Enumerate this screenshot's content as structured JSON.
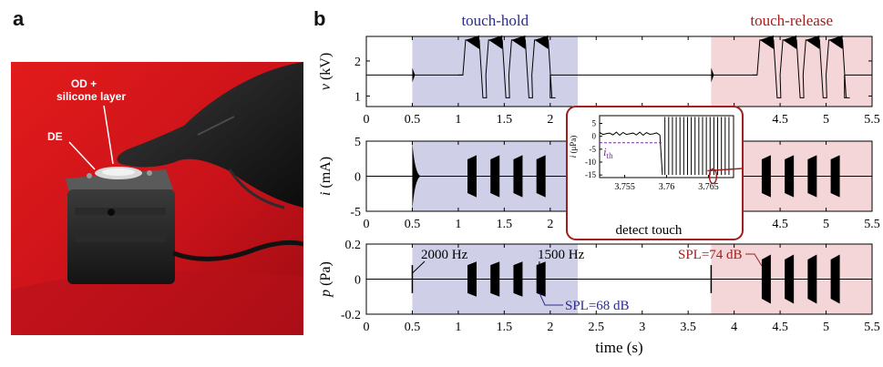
{
  "panels": {
    "a": "a",
    "b": "b"
  },
  "photo": {
    "label_od": "OD +",
    "label_silicone": "silicone layer",
    "label_de": "DE"
  },
  "regions": {
    "hold_label": "touch-hold",
    "release_label": "touch-release"
  },
  "colors": {
    "hold": "#bfc0e0",
    "release": "#f0c8cc",
    "hold_text": "#2b2b8c",
    "release_text": "#a01e1e",
    "inset_border": "#a01e1e",
    "signal": "#000000"
  },
  "chart_data": [
    {
      "type": "line",
      "ylabel_var": "v",
      "ylabel_unit": " (kV)",
      "xlim": [
        0,
        5.5
      ],
      "ylim": [
        0.7,
        2.7
      ],
      "xticks": [
        0,
        0.5,
        1,
        1.5,
        2,
        2.5,
        3,
        3.5,
        4,
        4.5,
        5,
        5.5
      ],
      "xtick_labels": [
        "0",
        "0.5",
        "1",
        "1.5",
        "2",
        "2.5",
        "3",
        "3.5",
        "4",
        "4.5",
        "5",
        "5.5"
      ],
      "yticks": [
        1,
        2
      ],
      "ytick_labels": [
        "1",
        "2"
      ],
      "baseline": 1.6,
      "pulse_starts_hold": [
        1.05,
        1.3,
        1.55,
        1.8
      ],
      "pulse_starts_release": [
        4.25,
        4.5,
        4.75,
        5.0
      ],
      "pulse_high": 2.6,
      "pulse_low": 0.95
    },
    {
      "type": "line",
      "ylabel_var": "i",
      "ylabel_unit": " (mA)",
      "xlim": [
        0,
        5.5
      ],
      "ylim": [
        -5,
        5
      ],
      "xticks": [
        0,
        0.5,
        1,
        1.5,
        2,
        2.5,
        3,
        3.5,
        4,
        4.5,
        5,
        5.5
      ],
      "xtick_labels": [
        "0",
        "0.5",
        "1",
        "1.5",
        "2",
        "2.5",
        "3",
        "3.5",
        "4",
        "4.5",
        "5",
        "5.5"
      ],
      "yticks": [
        -5,
        0,
        5
      ],
      "ytick_labels": [
        "-5",
        "0",
        "5"
      ],
      "bursts_hold": [
        1.1,
        1.35,
        1.6,
        1.85
      ],
      "bursts_release": [
        4.3,
        4.55,
        4.8,
        5.05
      ],
      "burst_amplitude": 3.0,
      "touch_spikes": [
        0.5,
        3.75
      ],
      "spike_amplitude": 4.8
    },
    {
      "type": "line",
      "ylabel_var": "p",
      "ylabel_unit": " (Pa)",
      "xlim": [
        0,
        5.5
      ],
      "ylim": [
        -0.2,
        0.2
      ],
      "xticks": [
        0,
        0.5,
        1,
        1.5,
        2,
        2.5,
        3,
        3.5,
        4,
        4.5,
        5,
        5.5
      ],
      "xtick_labels": [
        "0",
        "0.5",
        "1",
        "1.5",
        "2",
        "2.5",
        "3",
        "3.5",
        "4",
        "4.5",
        "5",
        "5.5"
      ],
      "yticks": [
        -0.2,
        0,
        0.2
      ],
      "ytick_labels": [
        "-0.2",
        "0",
        "0.2"
      ],
      "xlabel": "time (s)",
      "bursts_hold": [
        1.1,
        1.35,
        1.6,
        1.85
      ],
      "bursts_release": [
        4.3,
        4.55,
        4.8,
        5.05
      ],
      "hold_amplitude": 0.1,
      "release_amplitude": 0.14,
      "annotations": {
        "f2000": "2000 Hz",
        "f1500": "1500 Hz",
        "spl68": "SPL=68 dB",
        "spl74": "SPL=74 dB"
      }
    }
  ],
  "regions_data": {
    "hold": [
      0.5,
      2.3
    ],
    "release": [
      3.75,
      5.5
    ]
  },
  "inset": {
    "ylabel_var": "i",
    "ylabel_unit": " (μPa)",
    "xlim": [
      3.752,
      3.768
    ],
    "ylim": [
      -16,
      8
    ],
    "yticks": [
      5,
      0,
      -5,
      -10,
      -15
    ],
    "ytick_labels": [
      "5",
      "0",
      "-5",
      "-10",
      "-15"
    ],
    "xticks": [
      3.755,
      3.76,
      3.765
    ],
    "xtick_labels": [
      "3.755",
      "3.76",
      "3.765"
    ],
    "threshold": -2.5,
    "threshold_var": "i",
    "threshold_sub": "th",
    "caption": "detect touch"
  }
}
